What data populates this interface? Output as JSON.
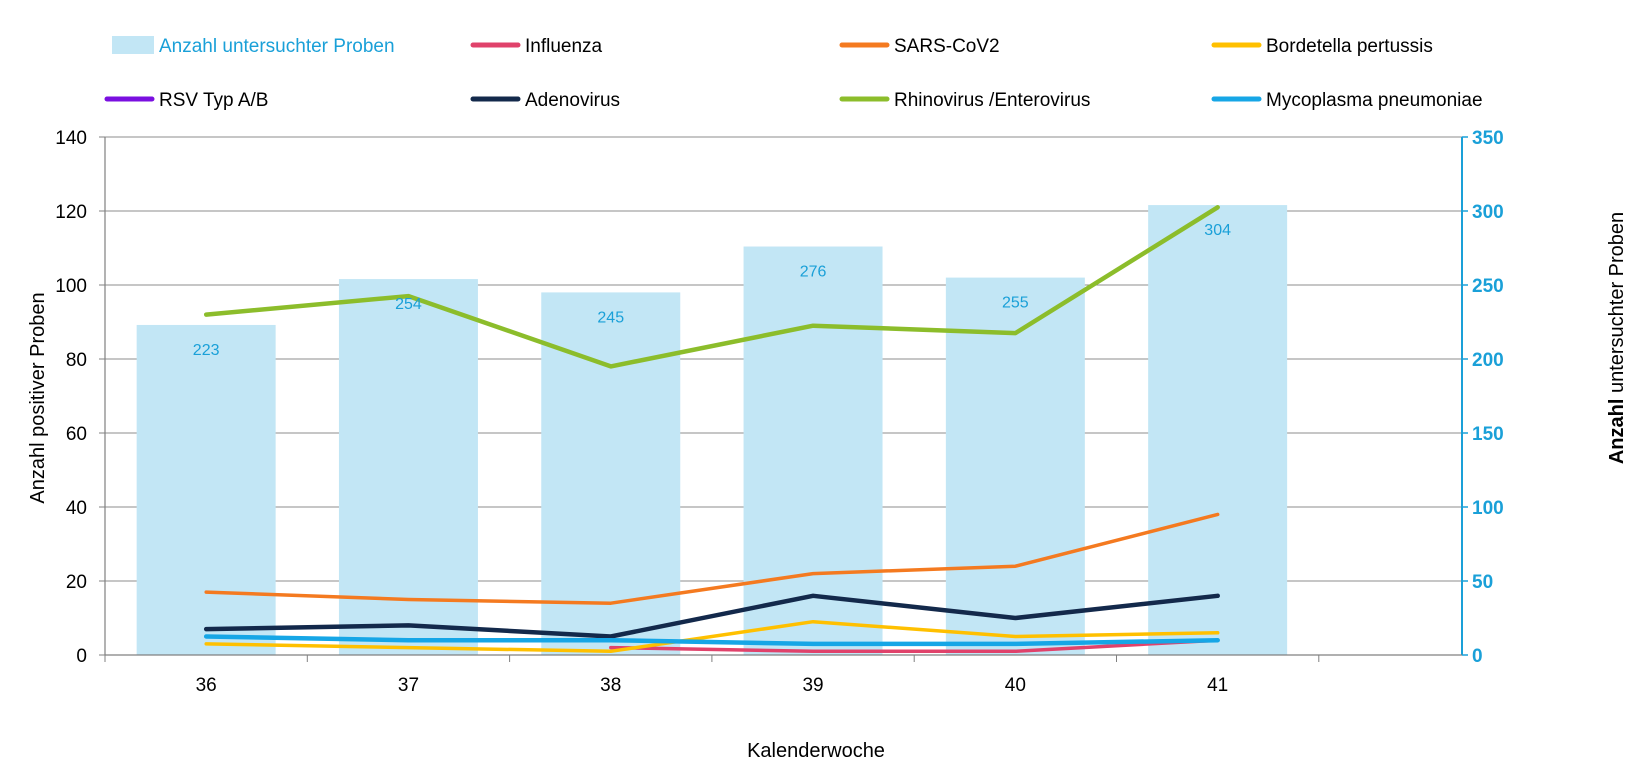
{
  "chart_data": {
    "type": "bar+line",
    "title": "",
    "xlabel": "Kalenderwoche",
    "ylabel": "Anzahl positiver Proben",
    "y2label_bold": "Anzahl",
    "y2label_rest": " untersuchter Proben",
    "categories": [
      "36",
      "37",
      "38",
      "39",
      "40",
      "41"
    ],
    "ylim": [
      0,
      140
    ],
    "y2lim": [
      0,
      350
    ],
    "yticks": [
      0,
      20,
      40,
      60,
      80,
      100,
      120,
      140
    ],
    "y2ticks": [
      0,
      50,
      100,
      150,
      200,
      250,
      300,
      350
    ],
    "bars": {
      "name": "Anzahl untersuchter Proben",
      "axis": "right",
      "color": "#c2e6f5",
      "values": [
        223,
        254,
        245,
        276,
        255,
        304
      ],
      "labels": [
        "223",
        "254",
        "245",
        "276",
        "255",
        "304"
      ]
    },
    "series": [
      {
        "name": "Influenza",
        "color": "#e0426b",
        "values": [
          null,
          null,
          2,
          1,
          1,
          4
        ]
      },
      {
        "name": "SARS-CoV2",
        "color": "#f47a20",
        "values": [
          17,
          15,
          14,
          22,
          24,
          38
        ]
      },
      {
        "name": "Bordetella pertussis",
        "color": "#ffc000",
        "values": [
          3,
          2,
          1,
          9,
          5,
          6
        ]
      },
      {
        "name": "RSV Typ A/B",
        "color": "#7a0fe0",
        "values": [
          null,
          null,
          null,
          null,
          null,
          null
        ]
      },
      {
        "name": "Adenovirus",
        "color": "#13294b",
        "values": [
          7,
          8,
          5,
          16,
          10,
          16
        ]
      },
      {
        "name": "Rhinovirus /Enterovirus",
        "color": "#8cbd2b",
        "values": [
          92,
          97,
          78,
          89,
          87,
          121
        ]
      },
      {
        "name": "Mycoplasma pneumoniae",
        "color": "#16a6e6",
        "values": [
          5,
          4,
          4,
          3,
          3,
          4
        ]
      }
    ],
    "legend": {
      "placement": "top",
      "order": [
        "Anzahl untersuchter Proben",
        "Influenza",
        "SARS-CoV2",
        "Bordetella pertussis",
        "RSV Typ A/B",
        "Adenovirus",
        "Rhinovirus /Enterovirus",
        "Mycoplasma pneumoniae"
      ]
    },
    "grid": true,
    "colors": {
      "axis": "#808080",
      "grid": "#8c8c8c",
      "right_axis": "#1aa0d8",
      "text": "#000000"
    }
  }
}
